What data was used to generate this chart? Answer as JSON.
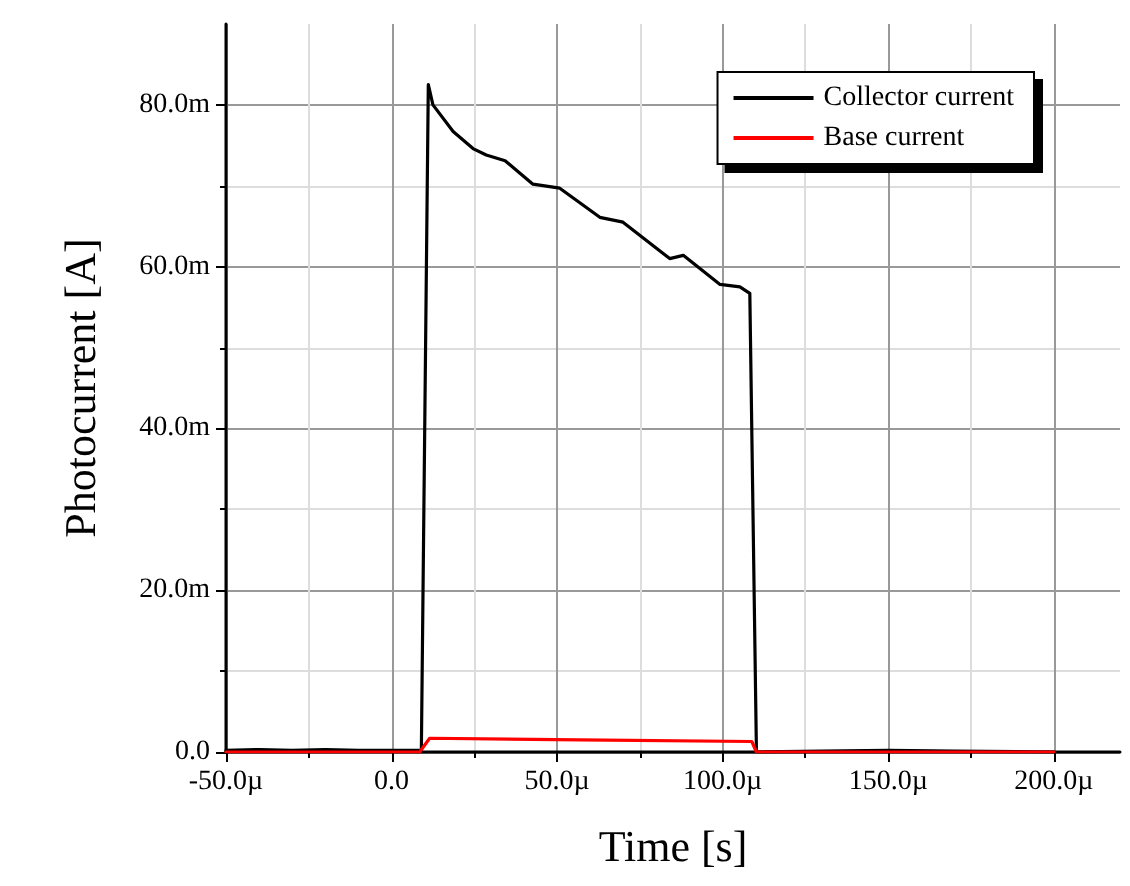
{
  "chart_data": {
    "type": "line",
    "xlabel": "Time [s]",
    "ylabel": "Photocurrent [A]",
    "xlim": [
      -50,
      220
    ],
    "ylim": [
      0,
      90
    ],
    "xticks": [
      {
        "value": -50,
        "label": "-50.0µ"
      },
      {
        "value": 0,
        "label": "0.0"
      },
      {
        "value": 50,
        "label": "50.0µ"
      },
      {
        "value": 100,
        "label": "100.0µ"
      },
      {
        "value": 150,
        "label": "150.0µ"
      },
      {
        "value": 200,
        "label": "200.0µ"
      }
    ],
    "yticks": [
      {
        "value": 0,
        "label": "0.0"
      },
      {
        "value": 20,
        "label": "20.0m"
      },
      {
        "value": 40,
        "label": "40.0m"
      },
      {
        "value": 60,
        "label": "60.0m"
      },
      {
        "value": 80,
        "label": "80.0m"
      }
    ],
    "grid": true,
    "legend": "top right",
    "marker": "none",
    "line_style": "solid",
    "series": [
      {
        "name": "Collector current",
        "color": "#000000",
        "x": [
          -50,
          -40,
          -30,
          -20,
          -10,
          0,
          9,
          11.1,
          12.5,
          18.6,
          24.6,
          28.6,
          34.3,
          42.7,
          50.8,
          62.9,
          69.9,
          84,
          88.1,
          99.2,
          105.2,
          108.2,
          110.2,
          130,
          150,
          170,
          200
        ],
        "values": [
          0.2,
          0.3,
          0.2,
          0.3,
          0.2,
          0.2,
          0.2,
          82.5,
          80,
          76.7,
          74.6,
          73.8,
          73.1,
          70.2,
          69.7,
          66.1,
          65.5,
          61,
          61.4,
          57.8,
          57.5,
          56.7,
          0,
          0.1,
          0.2,
          0.1,
          0
        ]
      },
      {
        "name": "Base current",
        "color": "#ff0000",
        "x": [
          -50,
          8.5,
          11.5,
          56.8,
          108.8,
          110.2,
          200
        ],
        "values": [
          0,
          0,
          1.7,
          1.5,
          1.3,
          0,
          0
        ]
      }
    ]
  }
}
